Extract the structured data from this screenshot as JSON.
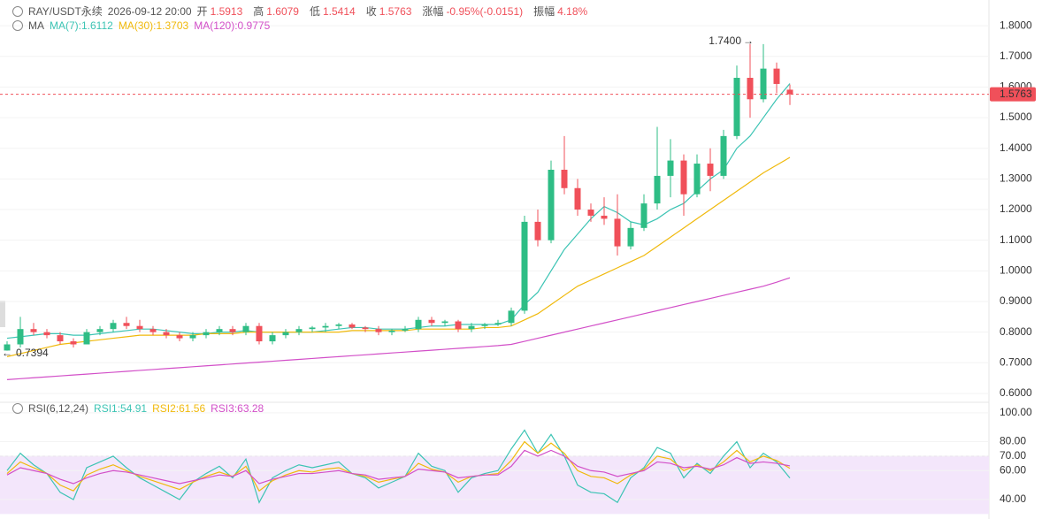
{
  "header": {
    "symbol": "RAY/USDT永续",
    "time": "2026-09-12 20:00",
    "fields": [
      {
        "label": "开",
        "value": "1.5913"
      },
      {
        "label": "高",
        "value": "1.6079"
      },
      {
        "label": "低",
        "value": "1.5414"
      },
      {
        "label": "收",
        "value": "1.5763"
      },
      {
        "label": "涨幅",
        "value": "-0.95%(-0.0151)"
      },
      {
        "label": "振幅",
        "value": "4.18%"
      }
    ]
  },
  "chart_data": [
    {
      "type": "candlestick",
      "legend_title": "MA",
      "candles": [
        [
          0.74,
          0.77,
          0.7394,
          0.76
        ],
        [
          0.76,
          0.85,
          0.75,
          0.81
        ],
        [
          0.81,
          0.83,
          0.79,
          0.8
        ],
        [
          0.8,
          0.81,
          0.78,
          0.79
        ],
        [
          0.79,
          0.8,
          0.76,
          0.77
        ],
        [
          0.77,
          0.78,
          0.75,
          0.76
        ],
        [
          0.76,
          0.81,
          0.76,
          0.8
        ],
        [
          0.8,
          0.82,
          0.79,
          0.81
        ],
        [
          0.81,
          0.84,
          0.8,
          0.83
        ],
        [
          0.83,
          0.85,
          0.81,
          0.82
        ],
        [
          0.82,
          0.84,
          0.8,
          0.81
        ],
        [
          0.81,
          0.82,
          0.79,
          0.8
        ],
        [
          0.8,
          0.81,
          0.78,
          0.79
        ],
        [
          0.79,
          0.8,
          0.77,
          0.78
        ],
        [
          0.78,
          0.8,
          0.77,
          0.79
        ],
        [
          0.79,
          0.81,
          0.78,
          0.8
        ],
        [
          0.8,
          0.82,
          0.79,
          0.81
        ],
        [
          0.81,
          0.82,
          0.79,
          0.8
        ],
        [
          0.8,
          0.83,
          0.79,
          0.82
        ],
        [
          0.82,
          0.83,
          0.76,
          0.77
        ],
        [
          0.77,
          0.8,
          0.76,
          0.79
        ],
        [
          0.79,
          0.81,
          0.78,
          0.8
        ],
        [
          0.8,
          0.82,
          0.79,
          0.81
        ],
        [
          0.81,
          0.82,
          0.8,
          0.815
        ],
        [
          0.815,
          0.83,
          0.8,
          0.82
        ],
        [
          0.82,
          0.83,
          0.81,
          0.825
        ],
        [
          0.825,
          0.83,
          0.81,
          0.815
        ],
        [
          0.815,
          0.82,
          0.8,
          0.81
        ],
        [
          0.81,
          0.82,
          0.79,
          0.8
        ],
        [
          0.8,
          0.81,
          0.79,
          0.805
        ],
        [
          0.805,
          0.82,
          0.8,
          0.81
        ],
        [
          0.81,
          0.85,
          0.8,
          0.84
        ],
        [
          0.84,
          0.85,
          0.82,
          0.83
        ],
        [
          0.83,
          0.84,
          0.82,
          0.835
        ],
        [
          0.835,
          0.84,
          0.8,
          0.81
        ],
        [
          0.81,
          0.83,
          0.8,
          0.82
        ],
        [
          0.82,
          0.83,
          0.81,
          0.825
        ],
        [
          0.825,
          0.84,
          0.82,
          0.83
        ],
        [
          0.83,
          0.88,
          0.82,
          0.87
        ],
        [
          0.87,
          1.18,
          0.86,
          1.16
        ],
        [
          1.16,
          1.2,
          1.08,
          1.1
        ],
        [
          1.1,
          1.36,
          1.09,
          1.33
        ],
        [
          1.33,
          1.44,
          1.25,
          1.27
        ],
        [
          1.27,
          1.3,
          1.18,
          1.2
        ],
        [
          1.2,
          1.22,
          1.16,
          1.18
        ],
        [
          1.18,
          1.24,
          1.15,
          1.17
        ],
        [
          1.17,
          1.25,
          1.05,
          1.08
        ],
        [
          1.08,
          1.16,
          1.07,
          1.14
        ],
        [
          1.14,
          1.25,
          1.13,
          1.22
        ],
        [
          1.22,
          1.47,
          1.2,
          1.31
        ],
        [
          1.31,
          1.43,
          1.24,
          1.36
        ],
        [
          1.36,
          1.38,
          1.18,
          1.25
        ],
        [
          1.25,
          1.38,
          1.24,
          1.35
        ],
        [
          1.35,
          1.4,
          1.26,
          1.31
        ],
        [
          1.31,
          1.46,
          1.3,
          1.44
        ],
        [
          1.44,
          1.67,
          1.43,
          1.63
        ],
        [
          1.63,
          1.74,
          1.5,
          1.56
        ],
        [
          1.56,
          1.74,
          1.55,
          1.66
        ],
        [
          1.66,
          1.68,
          1.58,
          1.61
        ],
        [
          1.5913,
          1.6079,
          1.5414,
          1.5763
        ]
      ],
      "up_color": "#2ebd85",
      "down_color": "#f0505a",
      "series": [
        {
          "name": "MA(7):1.6112",
          "color": "#3cc4b4",
          "values": [
            0.78,
            0.785,
            0.79,
            0.795,
            0.795,
            0.79,
            0.79,
            0.795,
            0.8,
            0.805,
            0.81,
            0.81,
            0.805,
            0.8,
            0.795,
            0.795,
            0.8,
            0.8,
            0.805,
            0.8,
            0.8,
            0.8,
            0.8,
            0.8,
            0.805,
            0.81,
            0.815,
            0.815,
            0.81,
            0.81,
            0.81,
            0.815,
            0.82,
            0.82,
            0.825,
            0.825,
            0.825,
            0.825,
            0.84,
            0.89,
            0.93,
            1.0,
            1.07,
            1.12,
            1.17,
            1.21,
            1.19,
            1.16,
            1.15,
            1.17,
            1.2,
            1.22,
            1.26,
            1.3,
            1.33,
            1.4,
            1.44,
            1.5,
            1.56,
            1.6112
          ]
        },
        {
          "name": "MA(30):1.3703",
          "color": "#f0b90b",
          "values": [
            0.72,
            0.73,
            0.74,
            0.75,
            0.76,
            0.765,
            0.77,
            0.775,
            0.78,
            0.785,
            0.79,
            0.79,
            0.79,
            0.79,
            0.79,
            0.795,
            0.795,
            0.795,
            0.8,
            0.8,
            0.8,
            0.8,
            0.8,
            0.8,
            0.8,
            0.8,
            0.805,
            0.805,
            0.805,
            0.805,
            0.805,
            0.81,
            0.81,
            0.81,
            0.81,
            0.81,
            0.815,
            0.815,
            0.82,
            0.84,
            0.86,
            0.89,
            0.92,
            0.95,
            0.97,
            0.99,
            1.01,
            1.03,
            1.05,
            1.08,
            1.11,
            1.14,
            1.17,
            1.2,
            1.23,
            1.26,
            1.29,
            1.32,
            1.345,
            1.3703
          ]
        },
        {
          "name": "MA(120):0.9775",
          "color": "#d24fc8",
          "values": [
            0.645,
            0.648,
            0.651,
            0.654,
            0.657,
            0.66,
            0.663,
            0.666,
            0.669,
            0.672,
            0.675,
            0.678,
            0.681,
            0.684,
            0.687,
            0.69,
            0.693,
            0.696,
            0.699,
            0.702,
            0.705,
            0.708,
            0.711,
            0.714,
            0.717,
            0.72,
            0.723,
            0.726,
            0.729,
            0.732,
            0.735,
            0.738,
            0.741,
            0.744,
            0.747,
            0.75,
            0.753,
            0.756,
            0.76,
            0.77,
            0.78,
            0.79,
            0.8,
            0.81,
            0.82,
            0.83,
            0.84,
            0.85,
            0.86,
            0.87,
            0.88,
            0.89,
            0.9,
            0.91,
            0.92,
            0.93,
            0.94,
            0.95,
            0.963,
            0.9775
          ]
        }
      ],
      "last_price": {
        "value": 1.5763,
        "label": "1.5763"
      },
      "high_label": {
        "value": 1.74,
        "label": "1.7400"
      },
      "low_label": {
        "value": 0.7394,
        "label": "0.7394"
      },
      "ylim": [
        0.571,
        1.884
      ],
      "yticks": [
        {
          "value": 0.6,
          "label": "0.6000"
        },
        {
          "value": 0.7,
          "label": "0.7000"
        },
        {
          "value": 0.8,
          "label": "0.8000"
        },
        {
          "value": 0.9,
          "label": "0.9000"
        },
        {
          "value": 1.0,
          "label": "1.0000"
        },
        {
          "value": 1.1,
          "label": "1.1000"
        },
        {
          "value": 1.2,
          "label": "1.2000"
        },
        {
          "value": 1.3,
          "label": "1.3000"
        },
        {
          "value": 1.4,
          "label": "1.4000"
        },
        {
          "value": 1.5,
          "label": "1.5000"
        },
        {
          "value": 1.6,
          "label": "1.6000"
        },
        {
          "value": 1.7,
          "label": "1.7000"
        },
        {
          "value": 1.8,
          "label": "1.8000"
        }
      ],
      "grid": true
    },
    {
      "type": "line",
      "legend_title": "RSI(6,12,24)",
      "series": [
        {
          "name": "RSI1:54.91",
          "color": "#3cc4b4",
          "values": [
            60,
            72,
            64,
            58,
            45,
            40,
            62,
            66,
            70,
            62,
            55,
            50,
            45,
            40,
            52,
            58,
            63,
            55,
            68,
            38,
            55,
            60,
            64,
            62,
            64,
            66,
            58,
            55,
            48,
            52,
            56,
            72,
            63,
            60,
            45,
            55,
            58,
            60,
            75,
            88,
            72,
            85,
            70,
            50,
            45,
            44,
            38,
            55,
            62,
            76,
            72,
            55,
            65,
            58,
            70,
            80,
            62,
            72,
            66,
            54.91
          ]
        },
        {
          "name": "RSI2:61.56",
          "color": "#f0b90b",
          "values": [
            58,
            66,
            62,
            58,
            50,
            46,
            57,
            61,
            64,
            60,
            56,
            53,
            50,
            47,
            52,
            56,
            59,
            56,
            63,
            46,
            53,
            57,
            60,
            59,
            61,
            62,
            58,
            56,
            52,
            54,
            56,
            65,
            61,
            59,
            52,
            56,
            57,
            58,
            67,
            80,
            72,
            79,
            72,
            60,
            56,
            55,
            51,
            57,
            61,
            70,
            68,
            60,
            64,
            60,
            66,
            74,
            66,
            70,
            67,
            61.56
          ]
        },
        {
          "name": "RSI3:63.28",
          "color": "#d24fc8",
          "values": [
            57,
            62,
            60,
            58,
            54,
            51,
            55,
            58,
            60,
            59,
            57,
            55,
            53,
            51,
            53,
            55,
            57,
            56,
            60,
            51,
            54,
            56,
            58,
            58,
            59,
            60,
            58,
            57,
            54,
            55,
            56,
            61,
            60,
            59,
            55,
            56,
            57,
            57,
            63,
            74,
            70,
            74,
            70,
            63,
            60,
            59,
            56,
            58,
            60,
            66,
            65,
            62,
            63,
            61,
            64,
            69,
            65,
            66,
            65,
            63.28
          ]
        }
      ],
      "band": [
        30,
        70
      ],
      "band_color": "#f3e6fb",
      "ylim": [
        29,
        106
      ],
      "yticks": [
        {
          "value": 40,
          "label": "40.00"
        },
        {
          "value": 60,
          "label": "60.00"
        },
        {
          "value": 70,
          "label": "70.00"
        },
        {
          "value": 80,
          "label": "80.00"
        },
        {
          "value": 100,
          "label": "100.00"
        }
      ],
      "grid": true
    }
  ]
}
